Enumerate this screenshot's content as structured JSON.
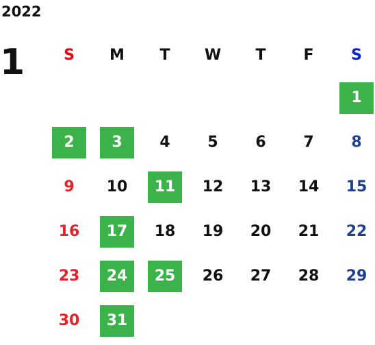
{
  "year": "2022",
  "month": "1",
  "weekdays": [
    "S",
    "M",
    "T",
    "W",
    "T",
    "F",
    "S"
  ],
  "colors": {
    "holiday_bg": "#3cb34a",
    "sunday": "#e8202a",
    "saturday": "#1f3f8f",
    "weekday_header_sun": "#e30613",
    "weekday_header_sat": "#0b1fd1",
    "text": "#111111"
  },
  "weeks": [
    [
      null,
      null,
      null,
      null,
      null,
      null,
      {
        "day": "1",
        "holiday": true
      }
    ],
    [
      {
        "day": "2",
        "holiday": true
      },
      {
        "day": "3",
        "holiday": true
      },
      {
        "day": "4",
        "holiday": false
      },
      {
        "day": "5",
        "holiday": false
      },
      {
        "day": "6",
        "holiday": false
      },
      {
        "day": "7",
        "holiday": false
      },
      {
        "day": "8",
        "holiday": false
      }
    ],
    [
      {
        "day": "9",
        "holiday": false
      },
      {
        "day": "10",
        "holiday": false
      },
      {
        "day": "11",
        "holiday": true
      },
      {
        "day": "12",
        "holiday": false
      },
      {
        "day": "13",
        "holiday": false
      },
      {
        "day": "14",
        "holiday": false
      },
      {
        "day": "15",
        "holiday": false
      }
    ],
    [
      {
        "day": "16",
        "holiday": false
      },
      {
        "day": "17",
        "holiday": true
      },
      {
        "day": "18",
        "holiday": false
      },
      {
        "day": "19",
        "holiday": false
      },
      {
        "day": "20",
        "holiday": false
      },
      {
        "day": "21",
        "holiday": false
      },
      {
        "day": "22",
        "holiday": false
      }
    ],
    [
      {
        "day": "23",
        "holiday": false
      },
      {
        "day": "24",
        "holiday": true
      },
      {
        "day": "25",
        "holiday": true
      },
      {
        "day": "26",
        "holiday": false
      },
      {
        "day": "27",
        "holiday": false
      },
      {
        "day": "28",
        "holiday": false
      },
      {
        "day": "29",
        "holiday": false
      }
    ],
    [
      {
        "day": "30",
        "holiday": false
      },
      {
        "day": "31",
        "holiday": true
      },
      null,
      null,
      null,
      null,
      null
    ]
  ]
}
